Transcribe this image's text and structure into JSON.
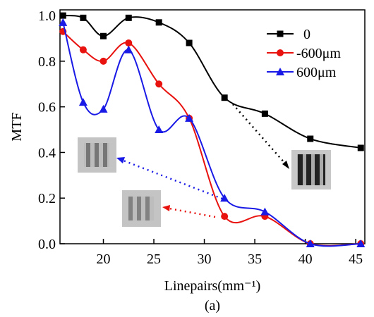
{
  "chart_data": {
    "type": "line",
    "x_label": "Linepairs(mm⁻¹)",
    "y_label": "MTF",
    "caption": "(a)",
    "xlim": [
      15.7,
      45.9
    ],
    "ylim": [
      0,
      1.025
    ],
    "xticks": [
      20,
      25,
      30,
      35,
      40,
      45
    ],
    "yticks": [
      {
        "value": 0,
        "label": "0.0"
      },
      0.2,
      0.4,
      0.6,
      0.8,
      {
        "value": 1,
        "label": "1.0"
      }
    ],
    "legend": "upper right",
    "series": [
      {
        "name": "0",
        "color": "#000000",
        "marker": "square",
        "x": [
          16,
          18,
          20,
          22.5,
          25.5,
          28.5,
          32,
          36,
          40.5,
          45.5
        ],
        "values": [
          1.0,
          0.99,
          0.91,
          0.99,
          0.97,
          0.88,
          0.64,
          0.57,
          0.46,
          0.42
        ]
      },
      {
        "name": "-600μm",
        "color": "#e8120f",
        "marker": "circle",
        "x": [
          16,
          18,
          20,
          22.5,
          25.5,
          28.5,
          32,
          36,
          40.5,
          45.5
        ],
        "values": [
          0.93,
          0.85,
          0.8,
          0.88,
          0.7,
          0.55,
          0.12,
          0.12,
          0,
          0
        ]
      },
      {
        "name": "600μm",
        "color": "#1a1ae6",
        "marker": "triangle",
        "x": [
          16,
          18,
          20,
          22.5,
          25.5,
          28.5,
          32,
          36,
          40.5,
          45.5
        ],
        "values": [
          0.97,
          0.62,
          0.59,
          0.85,
          0.5,
          0.55,
          0.2,
          0.14,
          0,
          0
        ]
      }
    ]
  }
}
